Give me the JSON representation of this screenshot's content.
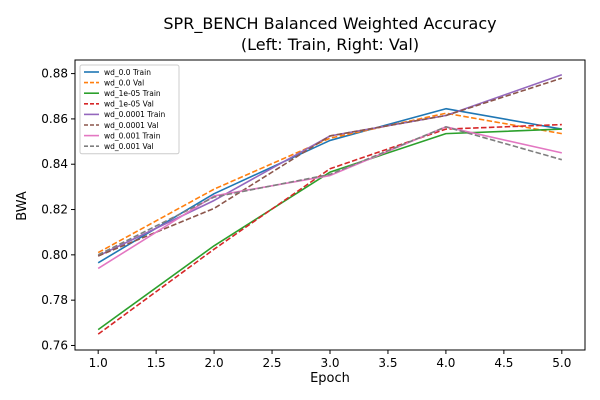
{
  "chart_data": {
    "type": "line",
    "title": "SPR_BENCH Balanced Weighted Accuracy",
    "subtitle": "(Left: Train, Right: Val)",
    "xlabel": "Epoch",
    "ylabel": "BWA",
    "xlim": [
      0.8,
      5.2
    ],
    "ylim": [
      0.758,
      0.886
    ],
    "xticks": [
      1.0,
      1.5,
      2.0,
      2.5,
      3.0,
      3.5,
      4.0,
      4.5,
      5.0
    ],
    "xtick_labels": [
      "1.0",
      "1.5",
      "2.0",
      "2.5",
      "3.0",
      "3.5",
      "4.0",
      "4.5",
      "5.0"
    ],
    "yticks": [
      0.76,
      0.78,
      0.8,
      0.82,
      0.84,
      0.86,
      0.88
    ],
    "ytick_labels": [
      "0.76",
      "0.78",
      "0.80",
      "0.82",
      "0.84",
      "0.86",
      "0.88"
    ],
    "grid": false,
    "legend_position": "upper-left",
    "x": [
      1,
      2,
      3,
      4,
      5
    ],
    "series": [
      {
        "name": "wd_0.0 Train",
        "color": "#1f77b4",
        "dash": "solid",
        "values": [
          0.7965,
          0.827,
          0.8505,
          0.8645,
          0.8555
        ]
      },
      {
        "name": "wd_0.0 Val",
        "color": "#ff7f0e",
        "dash": "dashed",
        "values": [
          0.801,
          0.829,
          0.8515,
          0.8625,
          0.8535
        ]
      },
      {
        "name": "wd_1e-05 Train",
        "color": "#2ca02c",
        "dash": "solid",
        "values": [
          0.767,
          0.804,
          0.8365,
          0.8535,
          0.8555
        ]
      },
      {
        "name": "wd_1e-05 Val",
        "color": "#d62728",
        "dash": "dashed",
        "values": [
          0.765,
          0.8025,
          0.838,
          0.8555,
          0.8575
        ]
      },
      {
        "name": "wd_0.0001 Train",
        "color": "#9467bd",
        "dash": "solid",
        "values": [
          0.7995,
          0.824,
          0.8525,
          0.8615,
          0.8795
        ]
      },
      {
        "name": "wd_0.0001 Val",
        "color": "#8c564b",
        "dash": "dashed",
        "values": [
          0.7995,
          0.8205,
          0.8525,
          0.8615,
          0.878
        ]
      },
      {
        "name": "wd_0.001 Train",
        "color": "#e377c2",
        "dash": "solid",
        "values": [
          0.794,
          0.826,
          0.835,
          0.8565,
          0.845
        ]
      },
      {
        "name": "wd_0.001 Val",
        "color": "#7f7f7f",
        "dash": "dashed",
        "values": [
          0.8,
          0.8255,
          0.8355,
          0.8565,
          0.842
        ]
      }
    ]
  }
}
